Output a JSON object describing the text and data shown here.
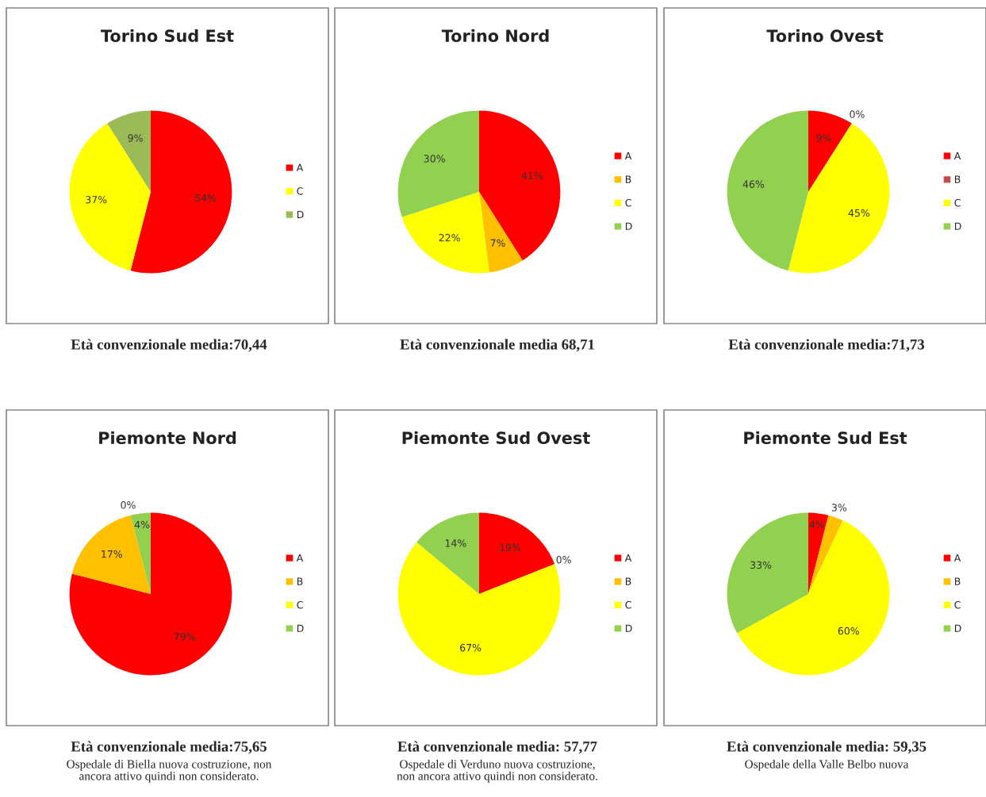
{
  "chart_data": [
    {
      "type": "pie",
      "title": "Torino Sud Est",
      "categories": [
        "A",
        "C",
        "D"
      ],
      "values": [
        54,
        37,
        9
      ],
      "colors": [
        "#ff0000",
        "#ffff00",
        "#9bbb59"
      ],
      "value_labels": [
        "54%",
        "37%",
        "9%"
      ],
      "legend": "right",
      "annotations": [
        "Età convenzionale media:70,44"
      ]
    },
    {
      "type": "pie",
      "title": "Torino Nord",
      "categories": [
        "A",
        "B",
        "C",
        "D"
      ],
      "values": [
        41,
        7,
        22,
        30
      ],
      "colors": [
        "#ff0000",
        "#ffc000",
        "#ffff00",
        "#92d050"
      ],
      "value_labels": [
        "41%",
        "7%",
        "22%",
        "30%"
      ],
      "legend": "right",
      "annotations": [
        "Età convenzionale media 68,71"
      ]
    },
    {
      "type": "pie",
      "title": "Torino Ovest",
      "categories": [
        "A",
        "B",
        "C",
        "D"
      ],
      "values": [
        9,
        0,
        45,
        46
      ],
      "colors": [
        "#ff0000",
        "#c0504d",
        "#ffff00",
        "#92d050"
      ],
      "value_labels": [
        "9%",
        "0%",
        "45%",
        "46%"
      ],
      "legend": "right",
      "annotations": [
        "Età convenzionale media:71,73"
      ]
    },
    {
      "type": "pie",
      "title": "Piemonte Nord",
      "categories": [
        "A",
        "B",
        "C",
        "D"
      ],
      "values": [
        79,
        17,
        0,
        4
      ],
      "colors": [
        "#ff0000",
        "#ffc000",
        "#ffff00",
        "#92d050"
      ],
      "value_labels": [
        "79%",
        "17%",
        "0%",
        "4%"
      ],
      "legend": "right",
      "annotations": [
        "Età convenzionale media:75,65",
        "Ospedale di Biella nuova costruzione, non\nancora attivo quindi non considerato."
      ]
    },
    {
      "type": "pie",
      "title": "Piemonte Sud Ovest",
      "categories": [
        "A",
        "B",
        "C",
        "D"
      ],
      "values": [
        19,
        0,
        67,
        14
      ],
      "colors": [
        "#ff0000",
        "#ffc000",
        "#ffff00",
        "#92d050"
      ],
      "value_labels": [
        "19%",
        "0%",
        "67%",
        "14%"
      ],
      "legend": "right",
      "annotations": [
        "Età convenzionale media: 57,77",
        "Ospedale di Verduno nuova costruzione,\nnon ancora attivo quindi non considerato."
      ]
    },
    {
      "type": "pie",
      "title": "Piemonte Sud Est",
      "categories": [
        "A",
        "B",
        "C",
        "D"
      ],
      "values": [
        4,
        3,
        60,
        33
      ],
      "colors": [
        "#ff0000",
        "#ffc000",
        "#ffff00",
        "#92d050"
      ],
      "value_labels": [
        "4%",
        "3%",
        "60%",
        "33%"
      ],
      "legend": "right",
      "annotations": [
        "Età convenzionale media: 59,35",
        "Ospedale della Valle Belbo nuova"
      ]
    }
  ]
}
